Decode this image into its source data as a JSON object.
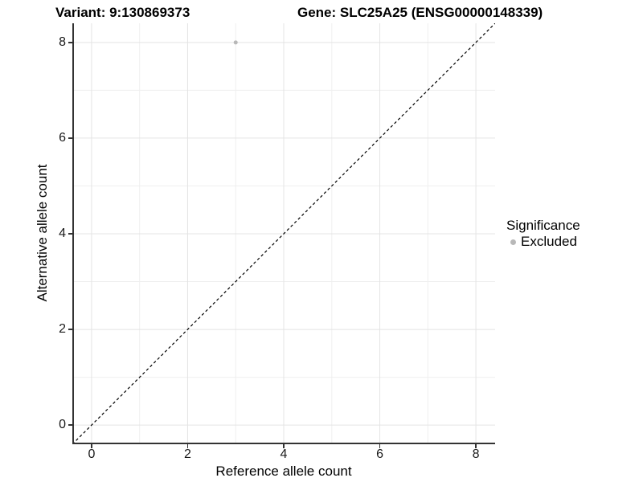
{
  "chart_data": {
    "type": "scatter",
    "titles": {
      "left": "Variant: 9:130869373",
      "right": "Gene: SLC25A25 (ENSG00000148339)"
    },
    "xlabel": "Reference allele count",
    "ylabel": "Alternative allele count",
    "xlim": [
      -0.4,
      8.4
    ],
    "ylim": [
      -0.4,
      8.4
    ],
    "xticks": [
      0,
      2,
      4,
      6,
      8
    ],
    "yticks": [
      0,
      2,
      4,
      6,
      8
    ],
    "minor_gridlines": [
      1,
      3,
      5,
      7
    ],
    "grid": "major and minor, light gray on white",
    "points": [
      {
        "x": 3,
        "y": 8,
        "series": "Excluded",
        "color": "#b8b8b8",
        "radius": 2.5
      }
    ],
    "identity_line": {
      "note": "y = x reference line, corner to corner",
      "style": "dashed",
      "color": "#000000"
    },
    "legend": {
      "title": "Significance",
      "position": "right",
      "entries": [
        {
          "label": "Excluded",
          "marker": "circle",
          "color": "#b8b8b8"
        }
      ]
    }
  },
  "colors": {
    "background": "#ffffff",
    "axis_line": "#333333",
    "grid_major": "#e4e4e4",
    "grid_minor": "#efefef",
    "tick_label": "#1a1a1a"
  }
}
